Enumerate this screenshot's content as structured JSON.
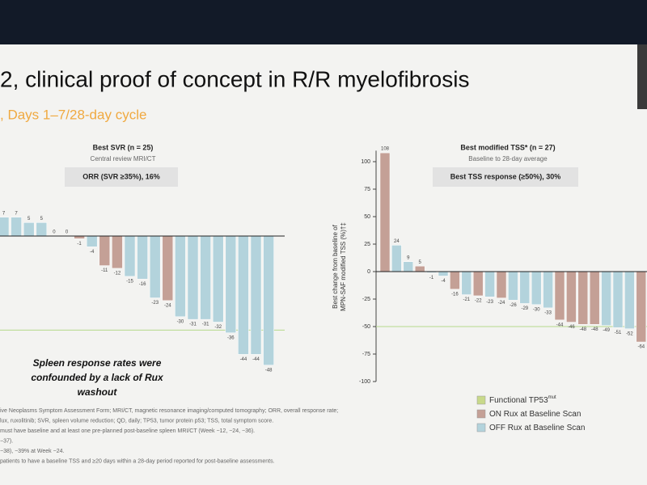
{
  "slide": {
    "title": "2, clinical proof of concept in R/R myelofibrosis",
    "subtitle": ", Days  1–7/28-day cycle",
    "annotation": [
      "Spleen response rates were",
      "confounded by a lack of Rux",
      "washout"
    ],
    "legend": [
      {
        "label": "Functional TP53",
        "sup": "mut",
        "color": "#c8d98a"
      },
      {
        "label": "ON Rux at Baseline Scan",
        "color": "#c4a096"
      },
      {
        "label": "OFF Rux at Baseline Scan",
        "color": "#b3d3dc"
      }
    ],
    "footnotes": [
      "ive Neoplasms Symptom Assessment Form; MRI/CT, magnetic resonance imaging/computed tomography; ORR, overall response rate;",
      "lux, ruxolitinib; SVR, spleen volume reduction; QD, daily; TP53, tumor protein p53; TSS, total symptom score.",
      "must have baseline and at least one pre-planned post-baseline spleen MRI/CT (Week −12, −24, −36).",
      "−37).",
      "−38), −39% at Week −24.",
      "patients to have a baseline TSS and ≥20 days within a 28-day period reported for post-baseline assessments."
    ]
  },
  "chart_data": [
    {
      "type": "bar",
      "title": "Best SVR (n = 25)",
      "subtitle": "Central review MRI/CT",
      "box": "ORR (SVR ≥35%), 16%",
      "values": [
        7,
        7,
        5,
        5,
        0,
        0,
        -1,
        -4,
        -11,
        -12,
        -15,
        -16,
        -23,
        -24,
        -30,
        -31,
        -31,
        -32,
        -36,
        -44,
        -44,
        -48
      ],
      "bar_colors": [
        "#b3d3dc",
        "#b3d3dc",
        "#b3d3dc",
        "#b3d3dc",
        "#b3d3dc",
        "#b3d3dc",
        "#c4a096",
        "#b3d3dc",
        "#c4a096",
        "#c4a096",
        "#b3d3dc",
        "#b3d3dc",
        "#b3d3dc",
        "#c4a096",
        "#b3d3dc",
        "#b3d3dc",
        "#b3d3dc",
        "#b3d3dc",
        "#b3d3dc",
        "#b3d3dc",
        "#b3d3dc",
        "#b3d3dc"
      ],
      "ylim": [
        -52,
        10
      ],
      "reference_line": -35
    },
    {
      "type": "bar",
      "title": "Best modified TSS* (n = 27)",
      "subtitle": "Baseline to 28-day average",
      "box": "Best TSS response (≥50%), 30%",
      "ylabel": [
        "Best change from baseline of",
        "MPN-SAF modified TSS (%)†‡"
      ],
      "values": [
        108,
        24,
        9,
        5,
        -1,
        -4,
        -16,
        -21,
        -22,
        -23,
        -24,
        -26,
        -29,
        -30,
        -33,
        -44,
        -46,
        -48,
        -48,
        -49,
        -51,
        -52,
        -64
      ],
      "bar_colors": [
        "#c4a096",
        "#b3d3dc",
        "#b3d3dc",
        "#c4a096",
        "#b3d3dc",
        "#b3d3dc",
        "#c4a096",
        "#b3d3dc",
        "#c4a096",
        "#b3d3dc",
        "#c4a096",
        "#b3d3dc",
        "#b3d3dc",
        "#b3d3dc",
        "#b3d3dc",
        "#c4a096",
        "#c4a096",
        "#c4a096",
        "#c4a096",
        "#b3d3dc",
        "#b3d3dc",
        "#b3d3dc",
        "#c4a096"
      ],
      "ylim": [
        -100,
        110
      ],
      "yticks": [
        100,
        75,
        50,
        25,
        0,
        -25,
        -50,
        -75,
        -100
      ],
      "reference_line": -50
    }
  ]
}
